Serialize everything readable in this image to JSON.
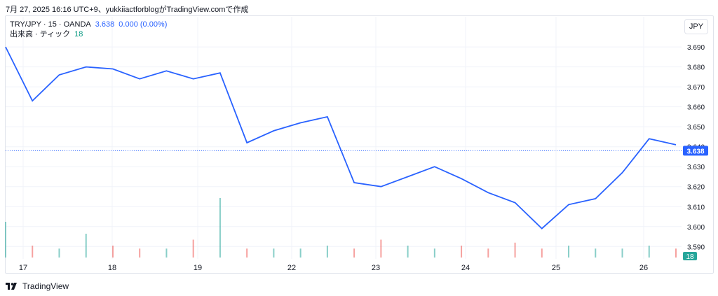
{
  "header": {
    "note": "7月 27, 2025 16:16 UTC+9、yukkiiactforblogがTradingView.comで作成"
  },
  "legend": {
    "symbol": "TRY/JPY · 15 · OANDA",
    "last": "3.638",
    "change": "0.000 (0.00%)",
    "volume_label": "出来高 · ティック",
    "volume_value": "18"
  },
  "currency_button": "JPY",
  "brand": {
    "name": "TradingView"
  },
  "colors": {
    "line": "#2962ff",
    "up": "#26a69a",
    "down": "#ef5350",
    "grid": "#f0f3fa",
    "text": "#131722"
  },
  "chart_data": {
    "type": "line",
    "x_tick_labels": [
      "17",
      "18",
      "19",
      "22",
      "23",
      "24",
      "25",
      "26"
    ],
    "y_tick_labels": [
      "3.690",
      "3.680",
      "3.670",
      "3.660",
      "3.650",
      "3.640",
      "3.630",
      "3.620",
      "3.610",
      "3.600",
      "3.590"
    ],
    "ylim": [
      3.588,
      3.696
    ],
    "last_price_label": "3.638",
    "volume_badge": "18",
    "x": [
      "Jul 17",
      "Jul 17 06:00",
      "Jul 17 12:00",
      "Jul 17 18:00",
      "Jul 18",
      "Jul 18 06:00",
      "Jul 18 12:00",
      "Jul 18 18:00",
      "Jul 19",
      "Jul 22",
      "Jul 22 06:00",
      "Jul 22 12:00",
      "Jul 22 18:00",
      "Jul 23",
      "Jul 23 06:00",
      "Jul 23 12:00",
      "Jul 23 18:00",
      "Jul 24",
      "Jul 24 06:00",
      "Jul 24 12:00",
      "Jul 24 18:00",
      "Jul 25",
      "Jul 25 06:00",
      "Jul 25 12:00",
      "Jul 25 18:00",
      "Jul 26"
    ],
    "y": [
      3.69,
      3.663,
      3.676,
      3.68,
      3.679,
      3.674,
      3.678,
      3.674,
      3.677,
      3.642,
      3.648,
      3.652,
      3.655,
      3.622,
      3.62,
      3.625,
      3.63,
      3.624,
      3.617,
      3.612,
      3.599,
      3.611,
      3.614,
      3.627,
      3.644,
      3.641
    ],
    "volume": [
      12,
      4,
      3,
      8,
      4,
      3,
      3,
      6,
      20,
      3,
      3,
      3,
      4,
      3,
      6,
      4,
      3,
      4,
      3,
      5,
      3,
      4,
      3,
      3,
      4,
      3
    ]
  }
}
